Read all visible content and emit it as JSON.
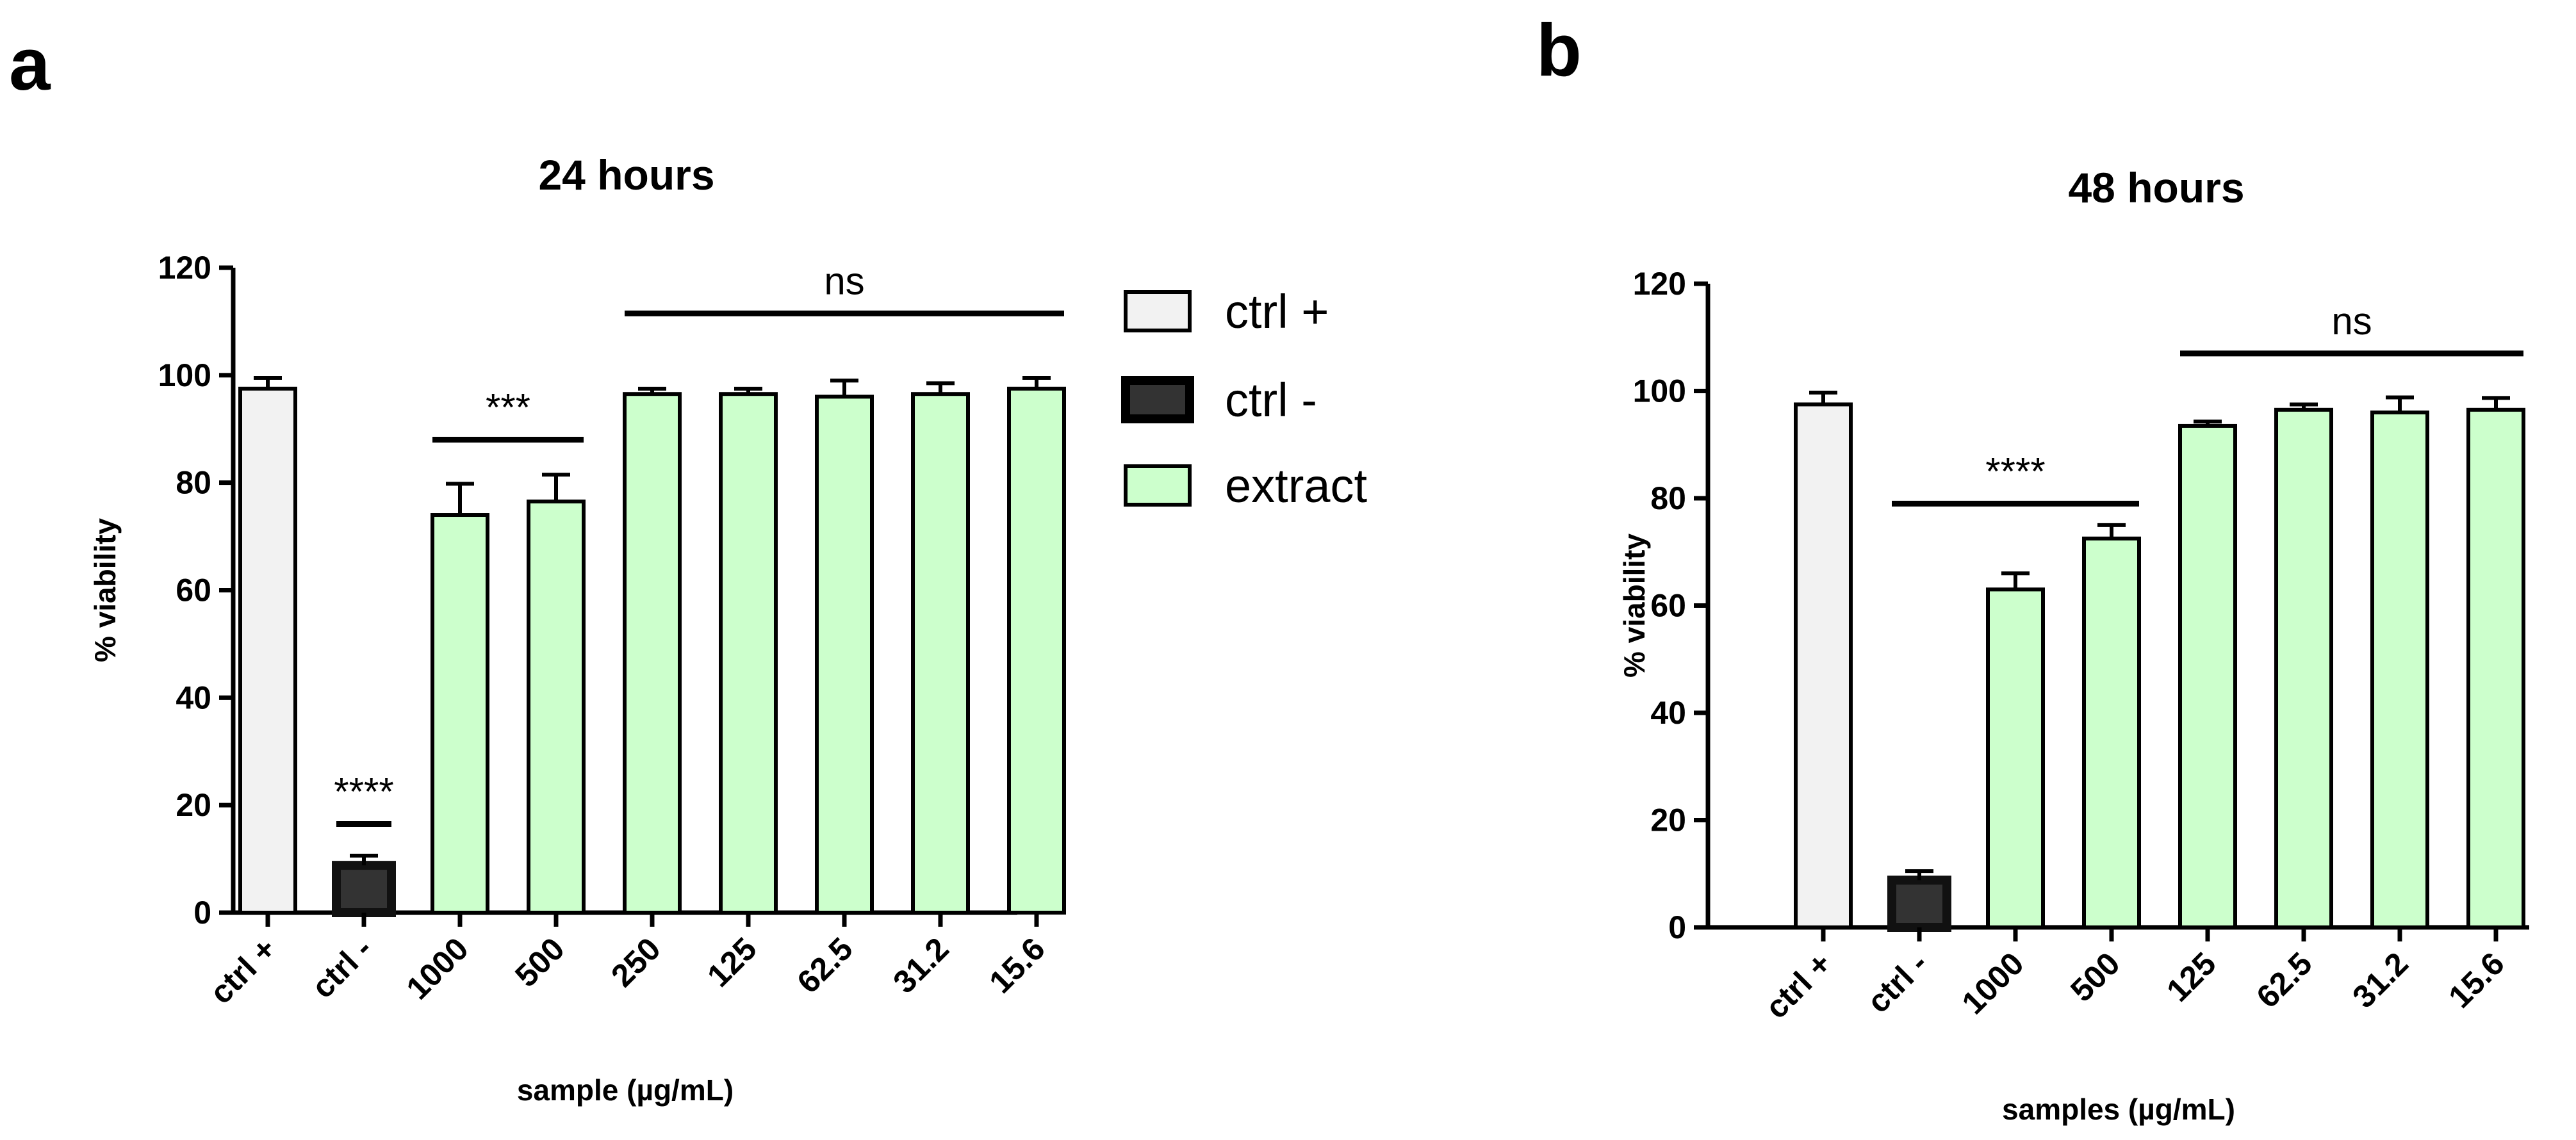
{
  "colors": {
    "ctrl_pos": "#f2f2f2",
    "ctrl_neg": "#333333",
    "extract": "#ccffcc",
    "stroke": "#000000"
  },
  "legend": {
    "items": [
      {
        "label": "ctrl +",
        "group": "ctrl_pos"
      },
      {
        "label": "ctrl -",
        "group": "ctrl_neg"
      },
      {
        "label": "extract",
        "group": "extract"
      }
    ]
  },
  "chart_data": [
    {
      "panel": "a",
      "type": "bar",
      "title": "24 hours",
      "xlabel": "sample (µg/mL)",
      "ylabel": "% viability",
      "ylim": [
        0,
        120
      ],
      "yticks": [
        0,
        20,
        40,
        60,
        80,
        100,
        120
      ],
      "categories": [
        "ctrl +",
        "ctrl -",
        "1000",
        "500",
        "250",
        "125",
        "62.5",
        "31.2",
        "15.6"
      ],
      "groups": [
        "ctrl_pos",
        "ctrl_neg",
        "extract",
        "extract",
        "extract",
        "extract",
        "extract",
        "extract",
        "extract"
      ],
      "values": [
        97.5,
        8.8,
        74,
        76.5,
        96.5,
        96.5,
        96,
        96.5,
        97.5
      ],
      "errors": [
        2,
        1.8,
        5.8,
        5,
        1,
        1,
        3,
        2,
        2
      ],
      "significance": [
        {
          "label": "****",
          "from": 1,
          "to": 1,
          "y": 16.5
        },
        {
          "label": "***",
          "from": 2,
          "to": 3,
          "y": 88
        },
        {
          "label": "ns",
          "from": 4,
          "to": 8,
          "y": 111.5
        }
      ]
    },
    {
      "panel": "b",
      "type": "bar",
      "title": "48 hours",
      "xlabel": "samples (µg/mL)",
      "ylabel": "% viability",
      "ylim": [
        0,
        120
      ],
      "yticks": [
        0,
        20,
        40,
        60,
        80,
        100,
        120
      ],
      "categories": [
        "ctrl +",
        "ctrl -",
        "1000",
        "500",
        "125",
        "62.5",
        "31.2",
        "15.6"
      ],
      "groups": [
        "ctrl_pos",
        "ctrl_neg",
        "extract",
        "extract",
        "extract",
        "extract",
        "extract",
        "extract"
      ],
      "values": [
        97.5,
        8.8,
        63,
        72.5,
        93.5,
        96.5,
        96,
        96.5
      ],
      "errors": [
        2.2,
        1.7,
        3,
        2.5,
        0.8,
        1,
        2.8,
        2.2
      ],
      "significance": [
        {
          "label": "****",
          "from": 1,
          "to": 3,
          "y": 79
        },
        {
          "label": "ns",
          "from": 4,
          "to": 7,
          "y": 107
        }
      ]
    }
  ]
}
